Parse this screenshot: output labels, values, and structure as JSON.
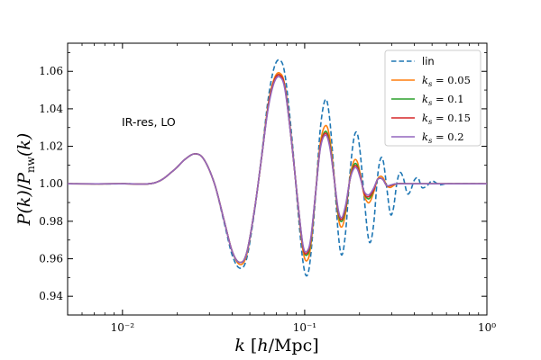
{
  "chart_data": {
    "type": "line",
    "xscale": "log",
    "xlim": [
      0.005,
      1.0
    ],
    "ylim": [
      0.93,
      1.075
    ],
    "xlabel": "k [h/Mpc]",
    "ylabel": "P(k)/P_nw(k)",
    "annotation": "IR-res, LO",
    "legend_position": "top-right",
    "x_ticks": [
      {
        "value": 0.01,
        "label": "10⁻²"
      },
      {
        "value": 0.1,
        "label": "10⁻¹"
      },
      {
        "value": 1.0,
        "label": "10⁰"
      }
    ],
    "y_ticks": [
      {
        "value": 0.94,
        "label": "0.94"
      },
      {
        "value": 0.96,
        "label": "0.96"
      },
      {
        "value": 0.98,
        "label": "0.98"
      },
      {
        "value": 1.0,
        "label": "1.00"
      },
      {
        "value": 1.02,
        "label": "1.02"
      },
      {
        "value": 1.04,
        "label": "1.04"
      },
      {
        "value": 1.06,
        "label": "1.06"
      }
    ],
    "series": [
      {
        "name": "lin",
        "color": "#1f77b4",
        "style": "dashed",
        "points": [
          [
            0.005,
            1.0
          ],
          [
            0.01,
            1.0
          ],
          [
            0.015,
            1.0005
          ],
          [
            0.019,
            1.007
          ],
          [
            0.022,
            1.013
          ],
          [
            0.025,
            1.016
          ],
          [
            0.028,
            1.013
          ],
          [
            0.032,
            1.0
          ],
          [
            0.036,
            0.98
          ],
          [
            0.04,
            0.962
          ],
          [
            0.044,
            0.955
          ],
          [
            0.048,
            0.96
          ],
          [
            0.053,
            0.985
          ],
          [
            0.058,
            1.015
          ],
          [
            0.063,
            1.045
          ],
          [
            0.068,
            1.062
          ],
          [
            0.073,
            1.066
          ],
          [
            0.078,
            1.058
          ],
          [
            0.085,
            1.025
          ],
          [
            0.092,
            0.985
          ],
          [
            0.098,
            0.958
          ],
          [
            0.103,
            0.951
          ],
          [
            0.108,
            0.962
          ],
          [
            0.115,
            0.995
          ],
          [
            0.122,
            1.03
          ],
          [
            0.13,
            1.045
          ],
          [
            0.137,
            1.035
          ],
          [
            0.145,
            1.005
          ],
          [
            0.153,
            0.973
          ],
          [
            0.16,
            0.962
          ],
          [
            0.168,
            0.975
          ],
          [
            0.177,
            1.005
          ],
          [
            0.186,
            1.024
          ],
          [
            0.194,
            1.027
          ],
          [
            0.202,
            1.016
          ],
          [
            0.212,
            0.993
          ],
          [
            0.222,
            0.973
          ],
          [
            0.23,
            0.969
          ],
          [
            0.24,
            0.98
          ],
          [
            0.25,
            1.002
          ],
          [
            0.26,
            1.013
          ],
          [
            0.27,
            1.012
          ],
          [
            0.282,
            0.998
          ],
          [
            0.295,
            0.984
          ],
          [
            0.307,
            0.987
          ],
          [
            0.32,
            1.0
          ],
          [
            0.333,
            1.006
          ],
          [
            0.348,
            1.003
          ],
          [
            0.365,
            0.995
          ],
          [
            0.38,
            0.996
          ],
          [
            0.4,
            1.002
          ],
          [
            0.42,
            1.003
          ],
          [
            0.44,
            0.998
          ],
          [
            0.47,
            0.999
          ],
          [
            0.5,
            1.0015
          ],
          [
            0.55,
            0.9995
          ],
          [
            0.6,
            1.0
          ],
          [
            0.7,
            1.0
          ],
          [
            1.0,
            1.0
          ]
        ]
      },
      {
        "name": "k_s = 0.05",
        "color": "#ff7f0e",
        "style": "solid",
        "points": [
          [
            0.005,
            1.0
          ],
          [
            0.01,
            1.0
          ],
          [
            0.015,
            1.0005
          ],
          [
            0.019,
            1.007
          ],
          [
            0.022,
            1.013
          ],
          [
            0.025,
            1.016
          ],
          [
            0.028,
            1.013
          ],
          [
            0.032,
            1.0
          ],
          [
            0.036,
            0.981
          ],
          [
            0.04,
            0.964
          ],
          [
            0.044,
            0.957
          ],
          [
            0.048,
            0.962
          ],
          [
            0.053,
            0.986
          ],
          [
            0.058,
            1.014
          ],
          [
            0.063,
            1.042
          ],
          [
            0.068,
            1.056
          ],
          [
            0.073,
            1.059
          ],
          [
            0.078,
            1.052
          ],
          [
            0.085,
            1.022
          ],
          [
            0.092,
            0.988
          ],
          [
            0.098,
            0.964
          ],
          [
            0.103,
            0.959
          ],
          [
            0.108,
            0.967
          ],
          [
            0.115,
            0.996
          ],
          [
            0.122,
            1.022
          ],
          [
            0.13,
            1.031
          ],
          [
            0.137,
            1.025
          ],
          [
            0.145,
            1.004
          ],
          [
            0.153,
            0.982
          ],
          [
            0.16,
            0.977
          ],
          [
            0.168,
            0.985
          ],
          [
            0.177,
            1.003
          ],
          [
            0.186,
            1.012
          ],
          [
            0.194,
            1.012
          ],
          [
            0.202,
            1.005
          ],
          [
            0.212,
            0.994
          ],
          [
            0.222,
            0.99
          ],
          [
            0.23,
            0.991
          ],
          [
            0.24,
            0.996
          ],
          [
            0.25,
            1.002
          ],
          [
            0.26,
            1.004
          ],
          [
            0.27,
            1.003
          ],
          [
            0.282,
            0.999
          ],
          [
            0.295,
            0.998
          ],
          [
            0.307,
            0.999
          ],
          [
            0.32,
            1.0
          ],
          [
            0.35,
            1.0
          ],
          [
            0.4,
            1.0
          ],
          [
            1.0,
            1.0
          ]
        ]
      },
      {
        "name": "k_s = 0.1",
        "color": "#2ca02c",
        "style": "solid",
        "points": [
          [
            0.005,
            1.0
          ],
          [
            0.01,
            1.0
          ],
          [
            0.015,
            1.0005
          ],
          [
            0.019,
            1.007
          ],
          [
            0.022,
            1.013
          ],
          [
            0.025,
            1.016
          ],
          [
            0.028,
            1.013
          ],
          [
            0.032,
            1.0
          ],
          [
            0.036,
            0.981
          ],
          [
            0.04,
            0.964
          ],
          [
            0.044,
            0.958
          ],
          [
            0.048,
            0.963
          ],
          [
            0.053,
            0.986
          ],
          [
            0.058,
            1.014
          ],
          [
            0.063,
            1.041
          ],
          [
            0.068,
            1.055
          ],
          [
            0.073,
            1.058
          ],
          [
            0.078,
            1.051
          ],
          [
            0.085,
            1.021
          ],
          [
            0.092,
            0.989
          ],
          [
            0.098,
            0.966
          ],
          [
            0.103,
            0.962
          ],
          [
            0.108,
            0.969
          ],
          [
            0.115,
            0.996
          ],
          [
            0.122,
            1.02
          ],
          [
            0.13,
            1.028
          ],
          [
            0.137,
            1.022
          ],
          [
            0.145,
            1.003
          ],
          [
            0.153,
            0.984
          ],
          [
            0.16,
            0.98
          ],
          [
            0.168,
            0.987
          ],
          [
            0.177,
            1.002
          ],
          [
            0.186,
            1.01
          ],
          [
            0.194,
            1.01
          ],
          [
            0.202,
            1.004
          ],
          [
            0.212,
            0.995
          ],
          [
            0.222,
            0.992
          ],
          [
            0.23,
            0.993
          ],
          [
            0.24,
            0.997
          ],
          [
            0.25,
            1.002
          ],
          [
            0.26,
            1.003
          ],
          [
            0.27,
            1.002
          ],
          [
            0.282,
            0.999
          ],
          [
            0.295,
            0.999
          ],
          [
            0.32,
            1.0
          ],
          [
            0.4,
            1.0
          ],
          [
            1.0,
            1.0
          ]
        ]
      },
      {
        "name": "k_s = 0.15",
        "color": "#d62728",
        "style": "solid",
        "points": [
          [
            0.005,
            1.0
          ],
          [
            0.01,
            1.0
          ],
          [
            0.015,
            1.0005
          ],
          [
            0.019,
            1.007
          ],
          [
            0.022,
            1.013
          ],
          [
            0.025,
            1.016
          ],
          [
            0.028,
            1.013
          ],
          [
            0.032,
            1.0
          ],
          [
            0.036,
            0.981
          ],
          [
            0.04,
            0.964
          ],
          [
            0.044,
            0.958
          ],
          [
            0.048,
            0.963
          ],
          [
            0.053,
            0.986
          ],
          [
            0.058,
            1.014
          ],
          [
            0.063,
            1.041
          ],
          [
            0.068,
            1.055
          ],
          [
            0.073,
            1.058
          ],
          [
            0.078,
            1.051
          ],
          [
            0.085,
            1.021
          ],
          [
            0.092,
            0.989
          ],
          [
            0.098,
            0.966
          ],
          [
            0.103,
            0.963
          ],
          [
            0.108,
            0.97
          ],
          [
            0.115,
            0.996
          ],
          [
            0.122,
            1.02
          ],
          [
            0.13,
            1.027
          ],
          [
            0.137,
            1.021
          ],
          [
            0.145,
            1.003
          ],
          [
            0.153,
            0.985
          ],
          [
            0.16,
            0.981
          ],
          [
            0.168,
            0.988
          ],
          [
            0.177,
            1.002
          ],
          [
            0.186,
            1.009
          ],
          [
            0.194,
            1.009
          ],
          [
            0.202,
            1.004
          ],
          [
            0.212,
            0.995
          ],
          [
            0.222,
            0.993
          ],
          [
            0.23,
            0.994
          ],
          [
            0.24,
            0.997
          ],
          [
            0.25,
            1.002
          ],
          [
            0.26,
            1.003
          ],
          [
            0.27,
            1.002
          ],
          [
            0.282,
            0.999
          ],
          [
            0.295,
            0.999
          ],
          [
            0.32,
            1.0
          ],
          [
            0.4,
            1.0
          ],
          [
            1.0,
            1.0
          ]
        ]
      },
      {
        "name": "k_s = 0.2",
        "color": "#9467bd",
        "style": "solid",
        "points": [
          [
            0.005,
            1.0
          ],
          [
            0.01,
            1.0
          ],
          [
            0.015,
            1.0005
          ],
          [
            0.019,
            1.007
          ],
          [
            0.022,
            1.013
          ],
          [
            0.025,
            1.016
          ],
          [
            0.028,
            1.013
          ],
          [
            0.032,
            1.0
          ],
          [
            0.036,
            0.981
          ],
          [
            0.04,
            0.964
          ],
          [
            0.044,
            0.958
          ],
          [
            0.048,
            0.963
          ],
          [
            0.053,
            0.986
          ],
          [
            0.058,
            1.014
          ],
          [
            0.063,
            1.04
          ],
          [
            0.068,
            1.054
          ],
          [
            0.073,
            1.057
          ],
          [
            0.078,
            1.05
          ],
          [
            0.085,
            1.021
          ],
          [
            0.092,
            0.989
          ],
          [
            0.098,
            0.967
          ],
          [
            0.103,
            0.964
          ],
          [
            0.108,
            0.971
          ],
          [
            0.115,
            0.996
          ],
          [
            0.122,
            1.019
          ],
          [
            0.13,
            1.026
          ],
          [
            0.137,
            1.02
          ],
          [
            0.145,
            1.003
          ],
          [
            0.153,
            0.986
          ],
          [
            0.16,
            0.982
          ],
          [
            0.168,
            0.989
          ],
          [
            0.177,
            1.002
          ],
          [
            0.186,
            1.008
          ],
          [
            0.194,
            1.008
          ],
          [
            0.202,
            1.003
          ],
          [
            0.212,
            0.996
          ],
          [
            0.222,
            0.994
          ],
          [
            0.23,
            0.995
          ],
          [
            0.24,
            0.998
          ],
          [
            0.25,
            1.002
          ],
          [
            0.26,
            1.003
          ],
          [
            0.27,
            1.002
          ],
          [
            0.282,
            0.999
          ],
          [
            0.3,
            0.9995
          ],
          [
            0.32,
            1.0
          ],
          [
            0.4,
            1.0
          ],
          [
            1.0,
            1.0
          ]
        ]
      }
    ]
  }
}
